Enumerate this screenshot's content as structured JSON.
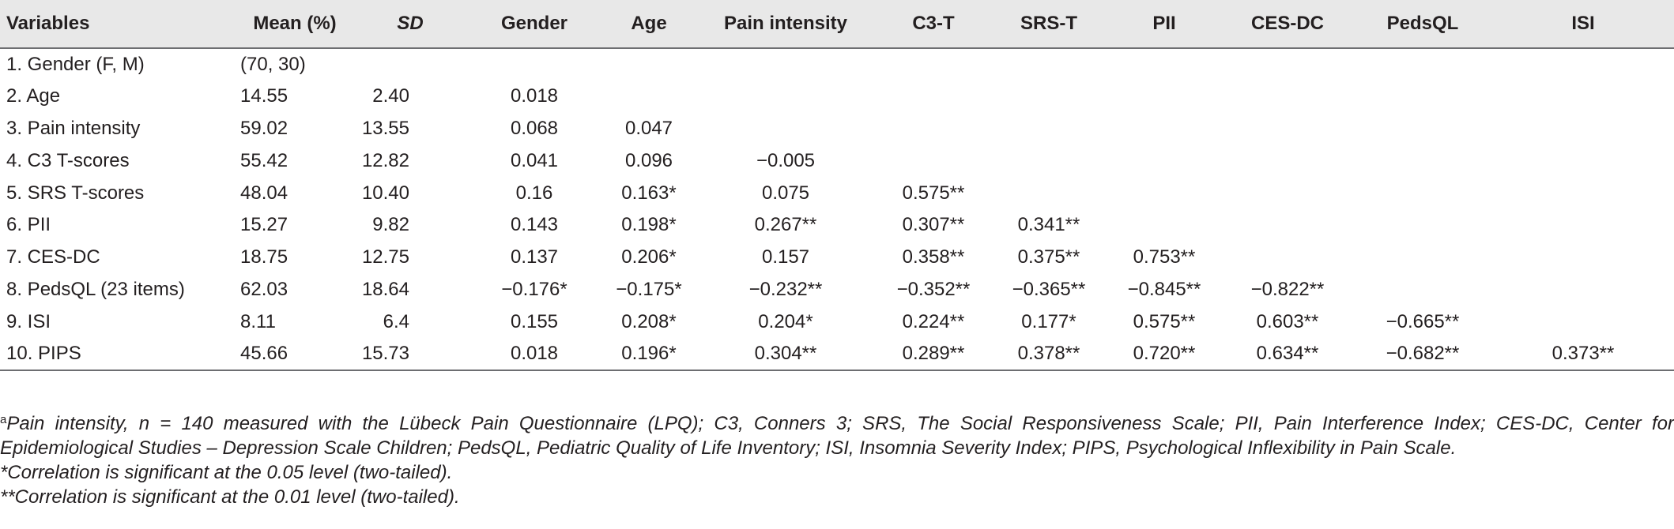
{
  "table": {
    "headers": [
      "Variables",
      "Mean (%)",
      "SD",
      "Gender",
      "Age",
      "Pain intensity",
      "C3-T",
      "SRS-T",
      "PII",
      "CES-DC",
      "PedsQL",
      "ISI"
    ],
    "rows": [
      [
        "1. Gender (F, M)",
        "(70, 30)",
        "",
        "",
        "",
        "",
        "",
        "",
        "",
        "",
        "",
        ""
      ],
      [
        "2. Age",
        "14.55",
        "2.40",
        "0.018",
        "",
        "",
        "",
        "",
        "",
        "",
        "",
        ""
      ],
      [
        "3. Pain intensity",
        "59.02",
        "13.55",
        "0.068",
        "0.047",
        "",
        "",
        "",
        "",
        "",
        "",
        ""
      ],
      [
        "4. C3 T-scores",
        "55.42",
        "12.82",
        "0.041",
        "0.096",
        "−0.005",
        "",
        "",
        "",
        "",
        "",
        ""
      ],
      [
        "5. SRS T-scores",
        "48.04",
        "10.40",
        "0.16",
        "0.163*",
        "0.075",
        "0.575**",
        "",
        "",
        "",
        "",
        ""
      ],
      [
        "6. PII",
        "15.27",
        "9.82",
        "0.143",
        "0.198*",
        "0.267**",
        "0.307**",
        "0.341**",
        "",
        "",
        "",
        ""
      ],
      [
        "7. CES-DC",
        "18.75",
        "12.75",
        "0.137",
        "0.206*",
        "0.157",
        "0.358**",
        "0.375**",
        "0.753**",
        "",
        "",
        ""
      ],
      [
        "8. PedsQL (23 items)",
        "62.03",
        "18.64",
        "−0.176*",
        "−0.175*",
        "−0.232**",
        "−0.352**",
        "−0.365**",
        "−0.845**",
        "−0.822**",
        "",
        ""
      ],
      [
        "9. ISI",
        "8.11",
        "6.4",
        "0.155",
        "0.208*",
        "0.204*",
        "0.224**",
        "0.177*",
        "0.575**",
        "0.603**",
        "−0.665**",
        ""
      ],
      [
        "10. PIPS",
        "45.66",
        "15.73",
        "0.018",
        "0.196*",
        "0.304**",
        "0.289**",
        "0.378**",
        "0.720**",
        "0.634**",
        "−0.682**",
        "0.373**"
      ]
    ]
  },
  "notes": {
    "footnote_marker": "a",
    "footnote_a": "Pain intensity, n = 140 measured with the Lübeck Pain Questionnaire (LPQ); C3, Conners 3; SRS, The Social Responsiveness Scale; PII, Pain Interference Index; CES-DC, Center for Epidemiological Studies – Depression Scale Children; PedsQL, Pediatric Quality of Life Inventory; ISI, Insomnia Severity Index; PIPS, Psychological Inflexibility in Pain Scale.",
    "sig_05": "*Correlation is significant at the 0.05 level (two-tailed).",
    "sig_01": "**Correlation is significant at the 0.01 level (two-tailed)."
  }
}
